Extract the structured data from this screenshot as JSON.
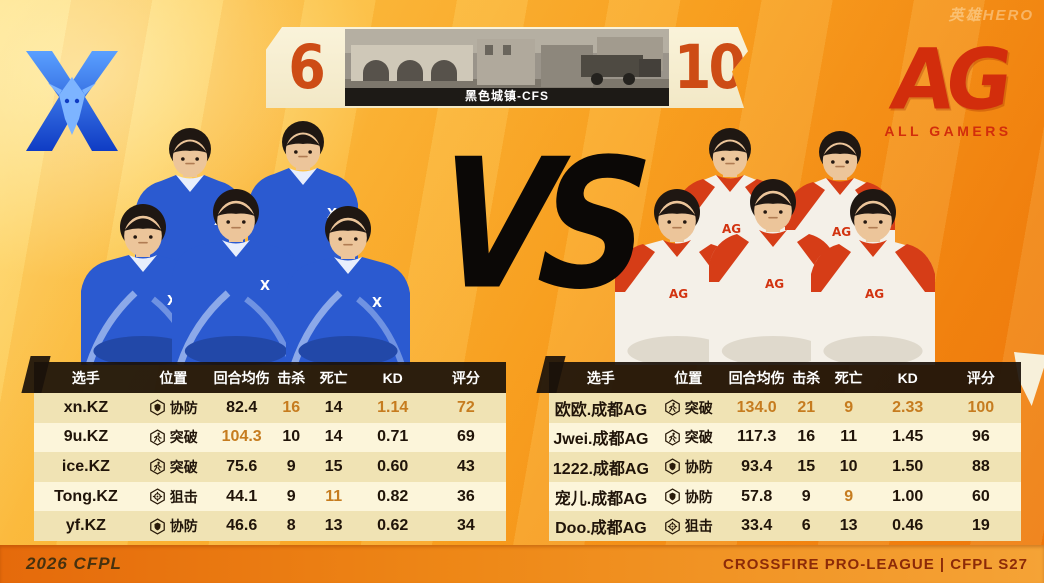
{
  "header": {
    "score_left": "6",
    "score_right": "10",
    "map_label": "黑色城镇-CFS",
    "vs": "VS",
    "watermark": "英雄HERO"
  },
  "teams": {
    "left": {
      "name": "KZ"
    },
    "right": {
      "name": "AG",
      "logo_text": "AG",
      "logo_subtext": "ALL GAMERS"
    }
  },
  "table": {
    "columns": [
      "选手",
      "位置",
      "回合均伤",
      "击杀",
      "死亡",
      "KD",
      "评分"
    ]
  },
  "left_table": {
    "rows": [
      {
        "player": "xn.KZ",
        "role": "协防",
        "icon": "shield-icon",
        "dmg": "82.4",
        "kills": "16",
        "deaths": "14",
        "kd": "1.14",
        "rating": "72",
        "hl": [
          "kills",
          "kd",
          "rating"
        ]
      },
      {
        "player": "9u.KZ",
        "role": "突破",
        "icon": "runner-icon",
        "dmg": "104.3",
        "kills": "10",
        "deaths": "14",
        "kd": "0.71",
        "rating": "69",
        "hl": [
          "dmg"
        ]
      },
      {
        "player": "ice.KZ",
        "role": "突破",
        "icon": "runner-icon",
        "dmg": "75.6",
        "kills": "9",
        "deaths": "15",
        "kd": "0.60",
        "rating": "43",
        "hl": []
      },
      {
        "player": "Tong.KZ",
        "role": "狙击",
        "icon": "crosshair-icon",
        "dmg": "44.1",
        "kills": "9",
        "deaths": "11",
        "kd": "0.82",
        "rating": "36",
        "hl": [
          "deaths"
        ]
      },
      {
        "player": "yf.KZ",
        "role": "协防",
        "icon": "shield-icon",
        "dmg": "46.6",
        "kills": "8",
        "deaths": "13",
        "kd": "0.62",
        "rating": "34",
        "hl": []
      }
    ]
  },
  "right_table": {
    "rows": [
      {
        "player": "欧欧.成都AG",
        "role": "突破",
        "icon": "runner-icon",
        "dmg": "134.0",
        "kills": "21",
        "deaths": "9",
        "kd": "2.33",
        "rating": "100",
        "hl": [
          "dmg",
          "kills",
          "deaths",
          "kd",
          "rating"
        ]
      },
      {
        "player": "Jwei.成都AG",
        "role": "突破",
        "icon": "runner-icon",
        "dmg": "117.3",
        "kills": "16",
        "deaths": "11",
        "kd": "1.45",
        "rating": "96",
        "hl": []
      },
      {
        "player": "1222.成都AG",
        "role": "协防",
        "icon": "shield-icon",
        "dmg": "93.4",
        "kills": "15",
        "deaths": "10",
        "kd": "1.50",
        "rating": "88",
        "hl": []
      },
      {
        "player": "宠儿.成都AG",
        "role": "协防",
        "icon": "shield-icon",
        "dmg": "57.8",
        "kills": "9",
        "deaths": "9",
        "kd": "1.00",
        "rating": "60",
        "hl": [
          "deaths"
        ]
      },
      {
        "player": "Doo.成都AG",
        "role": "狙击",
        "icon": "crosshair-icon",
        "dmg": "33.4",
        "kills": "6",
        "deaths": "13",
        "kd": "0.46",
        "rating": "19",
        "hl": []
      }
    ]
  },
  "footer": {
    "left": "2026 CFPL",
    "right": "CROSSFIRE PRO-LEAGUE | CFPL S27"
  },
  "colors": {
    "accent_orange": "#c67c1f",
    "score_red": "#cd4c15",
    "ag_red": "#d22d0c",
    "kz_blue": "#2857cc",
    "banner_cream": "#f7efd4"
  }
}
